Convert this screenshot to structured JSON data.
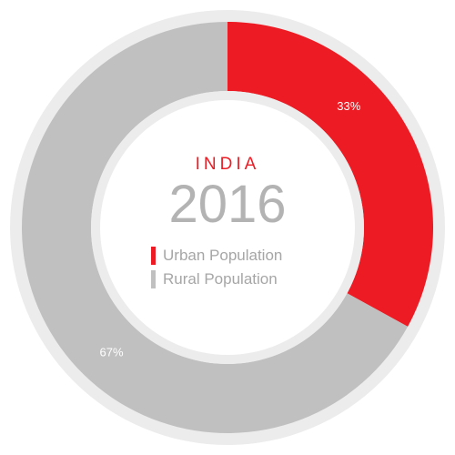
{
  "center": {
    "country": "INDIA",
    "year": "2016"
  },
  "colors": {
    "urban": "#ed1c24",
    "rural": "#c0c0c0",
    "outer_ring": "#ececec",
    "inner_ring": "#ececec"
  },
  "chart_data": {
    "type": "pie",
    "donut": true,
    "title": "INDIA",
    "subtitle": "2016",
    "slices": [
      {
        "label": "Urban Population",
        "value": 33,
        "value_label": "33%",
        "color": "#ed1c24"
      },
      {
        "label": "Rural Population",
        "value": 67,
        "value_label": "67%",
        "color": "#c0c0c0"
      }
    ],
    "legend": {
      "placement": "center",
      "entries": [
        "Urban Population",
        "Rural Population"
      ]
    }
  }
}
